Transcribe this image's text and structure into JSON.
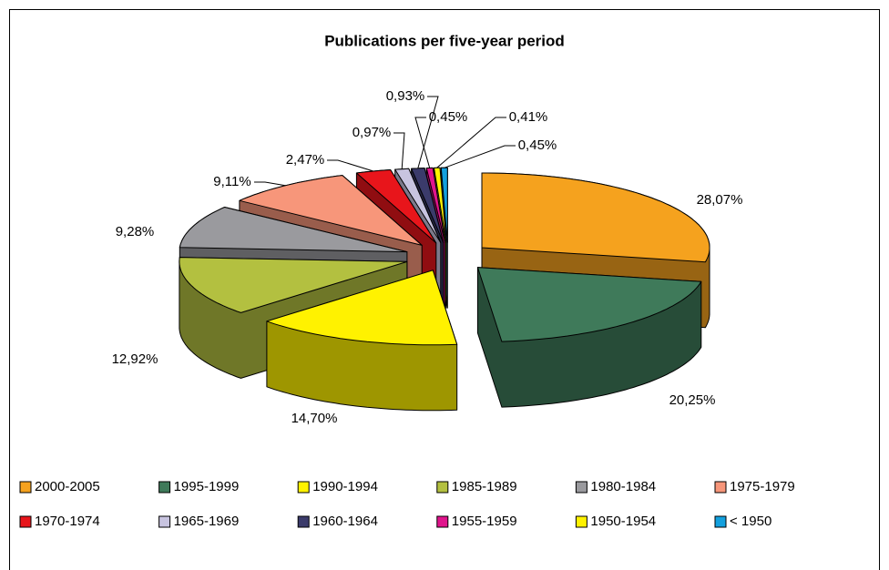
{
  "chart_data": {
    "type": "pie3d",
    "title": "Publications per five-year period",
    "categories": [
      "2000-2005",
      "1995-1999",
      "1990-1994",
      "1985-1989",
      "1980-1984",
      "1975-1979",
      "1970-1974",
      "1965-1969",
      "1960-1964",
      "1955-1959",
      "1950-1954",
      "< 1950"
    ],
    "values": [
      28.07,
      20.25,
      14.7,
      12.92,
      9.28,
      9.11,
      2.47,
      0.97,
      0.93,
      0.45,
      0.41,
      0.45
    ],
    "value_labels": [
      "28,07%",
      "20,25%",
      "14,70%",
      "12,92%",
      "9,28%",
      "9,11%",
      "2,47%",
      "0,97%",
      "0,93%",
      "0,45%",
      "0,41%",
      "0,45%"
    ],
    "colors": [
      "#f5a21e",
      "#3f7a5a",
      "#fff200",
      "#b3c040",
      "#9a9a9e",
      "#f7967a",
      "#e8151b",
      "#c8c4e0",
      "#3b3b6b",
      "#e0148c",
      "#fff200",
      "#13a0de"
    ],
    "legend": "bottom"
  }
}
